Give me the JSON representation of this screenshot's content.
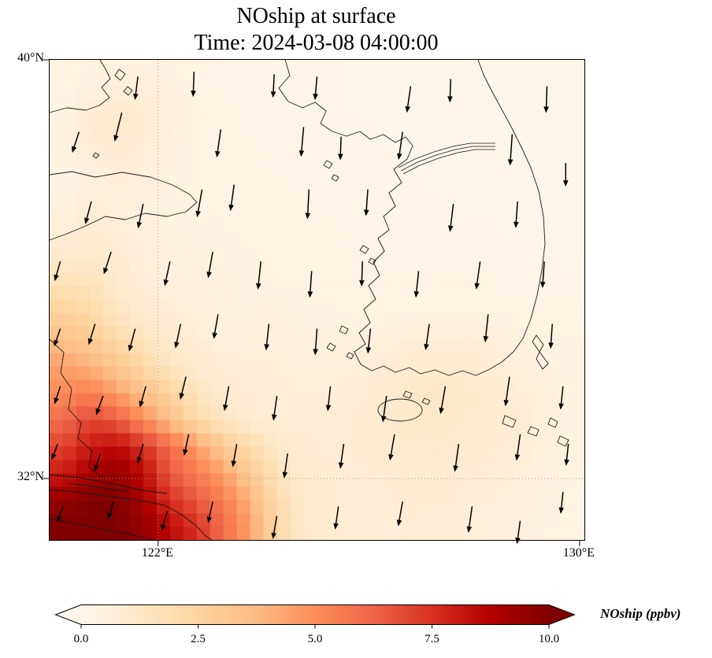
{
  "title": {
    "line1": "NOship at surface",
    "line2": "Time: 2024-03-08 04:00:00"
  },
  "axes": {
    "yticks": [
      {
        "label": "40°N",
        "f": 0.0
      },
      {
        "label": "32°N",
        "f": 0.872
      }
    ],
    "xticks": [
      {
        "label": "122°E",
        "f": 0.203
      },
      {
        "label": "130°E",
        "f": 0.991
      }
    ],
    "gridlines": {
      "vertical_f": 0.203,
      "horizontal_f": 0.872
    }
  },
  "colorbar": {
    "label": "NOship (ppbv)",
    "min": 0,
    "max": 10,
    "extend": "both",
    "ticks": [
      {
        "label": "0.0",
        "value": 0
      },
      {
        "label": "2.5",
        "value": 2.5
      },
      {
        "label": "5.0",
        "value": 5
      },
      {
        "label": "7.5",
        "value": 7.5
      },
      {
        "label": "10.0",
        "value": 10
      }
    ],
    "colors": [
      "#fff7ec",
      "#fee8c8",
      "#fdd49e",
      "#fdbb84",
      "#fc8d59",
      "#ef6548",
      "#d7301f",
      "#b30000",
      "#7f0000"
    ]
  },
  "chart_data": {
    "type": "heatmap",
    "title": "NOship at surface",
    "subtitle": "Time: 2024-03-08 04:00:00",
    "variable": "NOship",
    "units": "ppbv",
    "colormap": "OrRd",
    "vmin": 0,
    "vmax": 10,
    "lon_range": [
      120.0,
      130.1
    ],
    "lat_range": [
      30.8,
      40.0
    ],
    "grid": {
      "ncols": 20,
      "nrows": 18,
      "row_order": "north_to_south",
      "values_ppbv": [
        [
          0.3,
          0.4,
          0.5,
          0.5,
          0.4,
          0.3,
          0.2,
          0.2,
          0.2,
          0.2,
          0.2,
          0.1,
          0.1,
          0.1,
          0.1,
          0.1,
          0.1,
          0.1,
          0.1,
          0.1
        ],
        [
          0.3,
          0.6,
          0.9,
          0.8,
          0.6,
          0.4,
          0.3,
          0.2,
          0.2,
          0.2,
          0.2,
          0.1,
          0.1,
          0.1,
          0.1,
          0.1,
          0.1,
          0.1,
          0.1,
          0.1
        ],
        [
          0.4,
          0.9,
          1.2,
          0.9,
          0.6,
          0.4,
          0.3,
          0.2,
          0.2,
          0.2,
          0.2,
          0.2,
          0.1,
          0.1,
          0.1,
          0.1,
          0.1,
          0.1,
          0.1,
          0.1
        ],
        [
          0.4,
          0.7,
          0.9,
          0.7,
          0.5,
          0.4,
          0.3,
          0.3,
          0.2,
          0.2,
          0.2,
          0.2,
          0.2,
          0.1,
          0.1,
          0.1,
          0.1,
          0.1,
          0.1,
          0.1
        ],
        [
          0.3,
          0.5,
          0.7,
          0.6,
          0.5,
          0.4,
          0.3,
          0.3,
          0.3,
          0.2,
          0.2,
          0.2,
          0.2,
          0.2,
          0.1,
          0.1,
          0.1,
          0.1,
          0.1,
          0.1
        ],
        [
          0.5,
          0.8,
          0.6,
          0.5,
          0.4,
          0.4,
          0.3,
          0.3,
          0.3,
          0.3,
          0.2,
          0.2,
          0.2,
          0.2,
          0.2,
          0.1,
          0.1,
          0.1,
          0.1,
          0.1
        ],
        [
          0.7,
          0.9,
          0.8,
          0.6,
          0.5,
          0.4,
          0.4,
          0.3,
          0.3,
          0.3,
          0.3,
          0.2,
          0.2,
          0.2,
          0.2,
          0.2,
          0.2,
          0.1,
          0.1,
          0.1
        ],
        [
          1.1,
          1.2,
          0.9,
          0.7,
          0.5,
          0.5,
          0.4,
          0.4,
          0.3,
          0.3,
          0.3,
          0.3,
          0.2,
          0.2,
          0.2,
          0.2,
          0.2,
          0.2,
          0.2,
          0.1
        ],
        [
          1.8,
          1.6,
          1.1,
          0.8,
          0.6,
          0.5,
          0.5,
          0.4,
          0.4,
          0.4,
          0.3,
          0.3,
          0.3,
          0.3,
          0.3,
          0.3,
          0.3,
          0.2,
          0.2,
          0.2
        ],
        [
          2.6,
          2.2,
          1.4,
          1.0,
          0.8,
          0.6,
          0.5,
          0.5,
          0.5,
          0.4,
          0.4,
          0.4,
          0.4,
          0.4,
          0.4,
          0.4,
          0.4,
          0.3,
          0.3,
          0.3
        ],
        [
          3.5,
          3.0,
          2.2,
          1.5,
          1.0,
          0.8,
          0.6,
          0.6,
          0.6,
          0.5,
          0.5,
          0.5,
          0.6,
          0.7,
          0.8,
          0.8,
          0.7,
          0.5,
          0.4,
          0.4
        ],
        [
          4.5,
          4.0,
          3.2,
          2.2,
          1.4,
          1.0,
          0.8,
          0.7,
          0.7,
          0.6,
          0.6,
          0.7,
          0.8,
          1.0,
          1.1,
          1.0,
          0.8,
          0.6,
          0.5,
          0.4
        ],
        [
          5.0,
          5.5,
          4.5,
          3.5,
          2.5,
          1.5,
          1.0,
          0.8,
          0.8,
          0.7,
          0.7,
          0.8,
          1.0,
          1.2,
          1.3,
          1.2,
          1.0,
          0.8,
          0.6,
          0.4
        ],
        [
          6.0,
          7.0,
          6.5,
          5.0,
          3.5,
          2.2,
          1.3,
          0.9,
          0.8,
          0.8,
          0.8,
          0.9,
          1.0,
          1.2,
          1.2,
          1.1,
          1.0,
          0.9,
          0.6,
          0.4
        ],
        [
          7.0,
          8.0,
          8.5,
          7.5,
          6.0,
          4.5,
          3.0,
          2.0,
          1.2,
          0.9,
          0.8,
          0.9,
          1.0,
          1.1,
          1.1,
          1.0,
          0.9,
          0.8,
          0.6,
          0.4
        ],
        [
          8.0,
          9.0,
          9.5,
          8.5,
          6.5,
          5.5,
          4.5,
          3.0,
          1.5,
          1.0,
          0.9,
          0.8,
          0.9,
          1.0,
          1.0,
          0.9,
          0.8,
          0.7,
          0.5,
          0.4
        ],
        [
          9.5,
          10.0,
          10.0,
          9.0,
          7.5,
          6.5,
          5.5,
          4.0,
          2.0,
          1.1,
          0.9,
          0.8,
          0.8,
          0.9,
          0.9,
          0.8,
          0.7,
          0.6,
          0.5,
          0.3
        ],
        [
          10.0,
          10.0,
          10.0,
          9.5,
          8.5,
          7.5,
          6.0,
          4.5,
          2.2,
          1.1,
          0.9,
          0.8,
          0.7,
          0.8,
          0.8,
          0.7,
          0.6,
          0.5,
          0.4,
          0.3
        ]
      ]
    },
    "wind_quiver": {
      "description": "surface wind vectors, predominantly northerly (arrows point south)",
      "arrows": [
        [
          0.165,
          0.035,
          263,
          30
        ],
        [
          0.27,
          0.025,
          268,
          32
        ],
        [
          0.42,
          0.03,
          267,
          30
        ],
        [
          0.5,
          0.035,
          265,
          30
        ],
        [
          0.675,
          0.055,
          262,
          34
        ],
        [
          0.75,
          0.04,
          268,
          30
        ],
        [
          0.93,
          0.055,
          268,
          34
        ],
        [
          0.055,
          0.15,
          252,
          28
        ],
        [
          0.135,
          0.11,
          256,
          38
        ],
        [
          0.32,
          0.145,
          262,
          36
        ],
        [
          0.475,
          0.14,
          265,
          38
        ],
        [
          0.545,
          0.16,
          268,
          30
        ],
        [
          0.66,
          0.15,
          262,
          36
        ],
        [
          0.865,
          0.155,
          266,
          40
        ],
        [
          0.965,
          0.215,
          270,
          30
        ],
        [
          0.078,
          0.295,
          255,
          30
        ],
        [
          0.175,
          0.3,
          258,
          32
        ],
        [
          0.285,
          0.27,
          260,
          36
        ],
        [
          0.345,
          0.26,
          262,
          34
        ],
        [
          0.485,
          0.27,
          267,
          38
        ],
        [
          0.595,
          0.27,
          266,
          34
        ],
        [
          0.755,
          0.3,
          263,
          36
        ],
        [
          0.875,
          0.295,
          266,
          34
        ],
        [
          0.02,
          0.42,
          254,
          26
        ],
        [
          0.115,
          0.4,
          252,
          30
        ],
        [
          0.225,
          0.42,
          258,
          32
        ],
        [
          0.305,
          0.4,
          260,
          34
        ],
        [
          0.395,
          0.42,
          264,
          36
        ],
        [
          0.49,
          0.44,
          266,
          34
        ],
        [
          0.585,
          0.42,
          268,
          32
        ],
        [
          0.69,
          0.44,
          264,
          34
        ],
        [
          0.805,
          0.42,
          262,
          36
        ],
        [
          0.925,
          0.42,
          266,
          34
        ],
        [
          0.02,
          0.56,
          251,
          24
        ],
        [
          0.085,
          0.55,
          253,
          28
        ],
        [
          0.16,
          0.56,
          255,
          30
        ],
        [
          0.245,
          0.55,
          258,
          32
        ],
        [
          0.315,
          0.53,
          260,
          32
        ],
        [
          0.41,
          0.55,
          264,
          34
        ],
        [
          0.5,
          0.56,
          266,
          34
        ],
        [
          0.6,
          0.56,
          264,
          32
        ],
        [
          0.71,
          0.55,
          262,
          34
        ],
        [
          0.82,
          0.53,
          264,
          36
        ],
        [
          0.94,
          0.55,
          266,
          32
        ],
        [
          0.02,
          0.68,
          252,
          24
        ],
        [
          0.1,
          0.7,
          250,
          26
        ],
        [
          0.18,
          0.68,
          254,
          28
        ],
        [
          0.255,
          0.66,
          256,
          30
        ],
        [
          0.335,
          0.68,
          260,
          32
        ],
        [
          0.425,
          0.7,
          262,
          32
        ],
        [
          0.525,
          0.68,
          264,
          32
        ],
        [
          0.63,
          0.7,
          262,
          34
        ],
        [
          0.74,
          0.68,
          260,
          36
        ],
        [
          0.86,
          0.66,
          262,
          38
        ],
        [
          0.96,
          0.68,
          264,
          30
        ],
        [
          0.015,
          0.8,
          250,
          22
        ],
        [
          0.095,
          0.82,
          252,
          24
        ],
        [
          0.175,
          0.8,
          254,
          26
        ],
        [
          0.26,
          0.78,
          258,
          28
        ],
        [
          0.35,
          0.8,
          260,
          30
        ],
        [
          0.445,
          0.82,
          262,
          32
        ],
        [
          0.55,
          0.8,
          262,
          32
        ],
        [
          0.645,
          0.78,
          260,
          34
        ],
        [
          0.765,
          0.8,
          262,
          36
        ],
        [
          0.88,
          0.78,
          262,
          34
        ],
        [
          0.97,
          0.8,
          264,
          28
        ],
        [
          0.025,
          0.93,
          250,
          22
        ],
        [
          0.12,
          0.92,
          252,
          24
        ],
        [
          0.22,
          0.94,
          254,
          26
        ],
        [
          0.305,
          0.92,
          258,
          28
        ],
        [
          0.425,
          0.95,
          260,
          30
        ],
        [
          0.54,
          0.93,
          262,
          30
        ],
        [
          0.66,
          0.92,
          260,
          32
        ],
        [
          0.79,
          0.93,
          262,
          34
        ],
        [
          0.88,
          0.96,
          262,
          30
        ],
        [
          0.96,
          0.9,
          264,
          28
        ]
      ]
    },
    "map": {
      "coastline_paths": [
        "M64,0 L70,10 L77,24 L66,35 L76,48 L63,58 L46,64 L22,61 L0,67",
        "M88,12 l8,6 l-6,8 l-7,-6 Z",
        "M99,34 l6,5 l-5,6 l-6,-5 Z",
        "M58,118 l5,3 l-4,4 l-4,-3 Z",
        "M0,146 L28,142 L58,149 L92,143 L128,149 L156,159 L178,171 L187,181 L173,193 L149,199 L121,195 L96,203 L71,199 L46,211 L22,221 L0,229",
        "M0,355 L18,372 L14,398 L28,418 L24,444 L40,461 L36,481 L54,497 L49,517 L68,531",
        "M0,527 L38,531 L82,539 L118,547 L149,551",
        "M0,546 L42,550 L86,556 L122,561 L146,566",
        "M24,538 L64,543 L100,549",
        "M146,566 L168,578 L186,592 L198,605 L206,610",
        "M0,583 L36,590 L76,598 L112,605 L130,610",
        "M299,0 L305,20 L291,36 L303,53 L321,61 L337,54 L351,65 L344,81 L359,91 L377,97 L394,91 L407,101 L424,95 L439,105 L452,98 L461,109 L454,126 L437,139 L447,156 L431,169 L439,186 L424,199 L431,216 L417,227 L425,243 L411,257 L419,274 L405,287 L414,304 L399,317 L407,334 L393,347 L401,361 L387,371 L395,387 L409,395 L424,389 L439,397 L457,391 L471,399 L489,394 L507,401 L524,395 L541,401 L557,394 L574,384 L589,371 L601,354 L611,329 L619,299 L625,267 L629,234 L627,199 L621,167 L611,137 L599,111 L587,87 L573,61 L561,39 L551,19 L544,0",
        "M417,445 a28,14 0 1 0 56,0 a28,14 0 1 0 -56,0",
        "M618,350 l9,12 l-5,9 l11,15 l-7,7 l-8,-13 l4,-9 l-9,-13 Z",
        "M578,452 l14,6 l-4,9 l-13,-5 Z",
        "M611,466 l10,4 l-3,8 l-11,-4 Z",
        "M636,455 l9,5 l-3,7 l-9,-4 Z",
        "M648,478 l11,5 l-4,8 l-10,-5 Z",
        "M352,128 l7,4 l-4,6 l-7,-4 Z",
        "M361,146 l6,3 l-3,5 l-6,-3 Z",
        "M398,236 l7,4 l-4,6 l-7,-4 Z",
        "M408,252 l6,3 l-3,5 l-6,-3 Z",
        "M371,338 l8,4 l-3,6 l-8,-3 Z",
        "M356,360 l7,4 l-4,6 l-7,-4 Z",
        "M380,372 l6,3 l-3,5 l-6,-3 Z",
        "M452,421 l8,3 l-3,6 l-8,-3 Z",
        "M476,430 l7,3 l-3,5 l-7,-3 Z"
      ],
      "river_paths": [
        "M443,137 L464,126 L488,117 L512,110 L534,106 L566,106",
        "M446,141 L467,130 L491,121 L515,114 L537,110 L566,110",
        "M449,145 L470,134 L494,125 L518,118 L540,114 L566,114"
      ]
    }
  }
}
